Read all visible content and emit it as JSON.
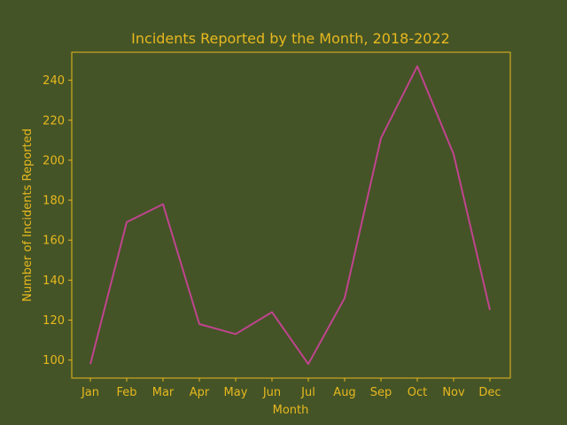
{
  "colors": {
    "background": "#445426",
    "text": "#e8b820",
    "frame": "#e8b820",
    "line": "#c0448f"
  },
  "chart_data": {
    "type": "line",
    "title": "Incidents Reported by the Month, 2018-2022",
    "xlabel": "Month",
    "ylabel": "Number of Incidents Reported",
    "categories": [
      "Jan",
      "Feb",
      "Mar",
      "Apr",
      "May",
      "Jun",
      "Jul",
      "Aug",
      "Sep",
      "Oct",
      "Nov",
      "Dec"
    ],
    "series": [
      {
        "values": [
          98,
          169,
          178,
          118,
          113,
          124,
          98,
          131,
          211,
          247,
          203,
          125
        ]
      }
    ],
    "ylim": [
      91,
      254
    ],
    "yticks": [
      100,
      120,
      140,
      160,
      180,
      200,
      220,
      240
    ],
    "grid": false,
    "legend": "none"
  }
}
